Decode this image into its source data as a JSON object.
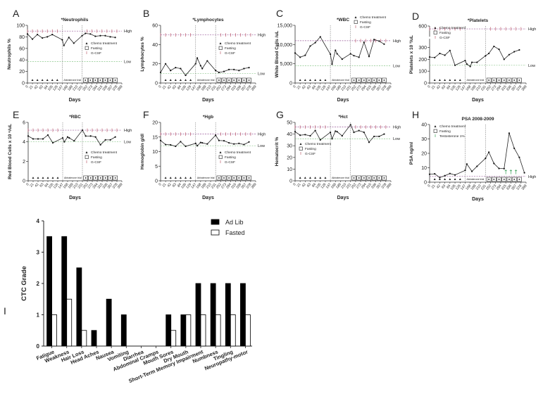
{
  "common": {
    "xlabel": "Days",
    "x_ticks": [
      0,
      21,
      42,
      63,
      84,
      105,
      126,
      147,
      168,
      189,
      210,
      231,
      252,
      273,
      294,
      315,
      336,
      357,
      378,
      399
    ],
    "xlim": [
      0,
      399
    ],
    "vlines": [
      147,
      231
    ],
    "trial_label": "Abiraterone trial",
    "chemo_days": [
      21,
      42,
      63,
      84,
      105,
      126
    ],
    "fasting_days": [
      245,
      266,
      287,
      308,
      329,
      350,
      371
    ],
    "high_label": "High",
    "low_label": "Low",
    "legend": [
      "Chemo treatment",
      "Fasting",
      "G-CSF"
    ],
    "colors": {
      "line": "#222222",
      "high": "#9a5a9a",
      "low": "#8cc88c",
      "gcsf": "#c06070",
      "testosterone": "#3aa05a"
    }
  },
  "chart_data": [
    {
      "panel": "A",
      "type": "line",
      "title": "*Neutrophils",
      "ylabel": "Neutrophils %",
      "ylim": [
        0,
        100
      ],
      "y_ticks": [
        0,
        20,
        40,
        60,
        80,
        100
      ],
      "y_tick_labels": [
        "0",
        "20",
        "40",
        "60",
        "80",
        "100"
      ],
      "high": 90,
      "low": 37,
      "legend_pos": "right-middle",
      "gcsf_days": [
        0,
        21,
        42,
        63,
        84,
        105,
        126,
        252,
        273,
        294,
        315,
        336,
        357,
        378
      ],
      "x": [
        0,
        21,
        42,
        63,
        84,
        105,
        147,
        154,
        175,
        196,
        231,
        245,
        266,
        287,
        308,
        329,
        350,
        371
      ],
      "y": [
        85,
        76,
        84,
        78,
        80,
        84,
        75,
        65,
        79,
        69,
        82,
        86,
        85,
        81,
        82,
        82,
        80,
        79
      ]
    },
    {
      "panel": "B",
      "type": "line",
      "title": "*Lymphocytes",
      "ylabel": "Lymphocytes %",
      "ylim": [
        0,
        60
      ],
      "y_ticks": [
        0,
        20,
        40,
        60
      ],
      "y_tick_labels": [
        "0",
        "20",
        "40",
        "60"
      ],
      "high": 50,
      "low": 10,
      "legend_pos": "right-middle",
      "gcsf_days": [
        0,
        21,
        42,
        63,
        84,
        105,
        126,
        252,
        273,
        294,
        315,
        336,
        357,
        378
      ],
      "x": [
        0,
        21,
        42,
        63,
        84,
        105,
        147,
        154,
        168,
        175,
        196,
        231,
        245,
        266,
        287,
        308,
        329,
        350,
        371
      ],
      "y": [
        11,
        20,
        13,
        16,
        15,
        8,
        20,
        26,
        18,
        15,
        23,
        13,
        11,
        12,
        14,
        14,
        13,
        15,
        16
      ]
    },
    {
      "panel": "C",
      "type": "line",
      "title": "*WBC",
      "ylabel": "White Blood Cells /uL",
      "ylim": [
        0,
        15000
      ],
      "y_ticks": [
        0,
        5000,
        10000,
        15000
      ],
      "y_tick_labels": [
        "0",
        "5,000",
        "10,000",
        "15,000"
      ],
      "high": 11000,
      "low": 4500,
      "legend_pos": "top-right",
      "gcsf_days": [
        252,
        273,
        294,
        315,
        336,
        357,
        378
      ],
      "x": [
        0,
        21,
        42,
        63,
        84,
        105,
        147,
        154,
        168,
        175,
        196,
        231,
        245,
        266,
        287,
        308,
        329,
        350,
        371
      ],
      "y": [
        7800,
        6700,
        7200,
        9600,
        10500,
        12000,
        7500,
        4900,
        8500,
        7600,
        6200,
        7600,
        7100,
        6700,
        10600,
        6900,
        11300,
        10900,
        10100
      ]
    },
    {
      "panel": "D",
      "type": "line",
      "title": "*Platelets",
      "ylabel": "Platelets x 10 ³/uL",
      "ylim": [
        0,
        600
      ],
      "y_break": [
        350,
        560
      ],
      "y_ticks": [
        0,
        100,
        200,
        300,
        600
      ],
      "y_tick_labels": [
        "0",
        "100",
        "200",
        "300",
        "600"
      ],
      "high": 590,
      "low": 150,
      "legend_pos": "top-left",
      "gcsf_days": [
        0,
        21,
        42,
        63,
        84,
        105,
        126,
        252,
        273,
        294,
        315,
        336,
        357,
        378
      ],
      "x": [
        0,
        21,
        42,
        63,
        84,
        105,
        147,
        154,
        168,
        175,
        196,
        231,
        245,
        266,
        287,
        308,
        329,
        350,
        371
      ],
      "y": [
        220,
        215,
        250,
        235,
        275,
        150,
        190,
        160,
        140,
        175,
        175,
        230,
        250,
        310,
        285,
        200,
        240,
        265,
        280
      ]
    },
    {
      "panel": "E",
      "type": "line",
      "title": "*RBC",
      "ylabel": "Red Blood Cells x 10 ⁶/uL",
      "ylim": [
        0,
        6
      ],
      "y_ticks": [
        0,
        2,
        4,
        6
      ],
      "y_tick_labels": [
        "0",
        "2",
        "4",
        "6"
      ],
      "high": 5.2,
      "low": 4,
      "legend_pos": "right-lower",
      "gcsf_days": [
        0,
        21,
        42,
        63,
        84,
        105,
        126,
        252,
        273,
        294,
        315,
        336,
        357,
        378
      ],
      "x": [
        0,
        21,
        42,
        63,
        84,
        105,
        147,
        154,
        168,
        175,
        196,
        231,
        245,
        266,
        287,
        308,
        329,
        350,
        371
      ],
      "y": [
        4.6,
        4.3,
        4.3,
        4.3,
        4.7,
        3.9,
        4.4,
        4.0,
        4.5,
        4.4,
        4.1,
        5.2,
        4.6,
        4.6,
        4.5,
        3.7,
        4.2,
        4.2,
        4.5
      ]
    },
    {
      "panel": "F",
      "type": "line",
      "title": "*Hgb",
      "ylabel": "Hemoglobin g/dl",
      "ylim": [
        0,
        20
      ],
      "y_ticks": [
        0,
        5,
        10,
        15,
        20
      ],
      "y_tick_labels": [
        "0",
        "5",
        "10",
        "15",
        "20"
      ],
      "high": 16,
      "low": 12,
      "legend_pos": "right-lower",
      "gcsf_days": [
        0,
        21,
        42,
        63,
        84,
        105,
        126,
        252,
        273,
        294,
        315,
        336,
        357,
        378
      ],
      "x": [
        0,
        21,
        42,
        63,
        84,
        105,
        147,
        154,
        168,
        175,
        196,
        231,
        245,
        266,
        287,
        308,
        329,
        350,
        371
      ],
      "y": [
        13.8,
        12.4,
        12.3,
        11.8,
        13.4,
        11.8,
        12.8,
        12,
        13.1,
        13,
        12.6,
        15.6,
        13.8,
        13.7,
        13,
        12.6,
        12.8,
        12.4,
        13.3
      ]
    },
    {
      "panel": "G",
      "type": "line",
      "title": "*Hct",
      "ylabel": "Hematocrit %",
      "ylim": [
        0,
        50
      ],
      "y_ticks": [
        0,
        10,
        20,
        30,
        40,
        50
      ],
      "y_tick_labels": [
        "0",
        "10",
        "20",
        "30",
        "40",
        "50"
      ],
      "high": 46,
      "low": 36,
      "legend_pos": "left-middle",
      "gcsf_days": [
        0,
        21,
        42,
        63,
        84,
        105,
        126,
        252,
        273,
        294,
        315,
        336,
        357,
        378
      ],
      "x": [
        0,
        21,
        42,
        63,
        84,
        105,
        147,
        154,
        168,
        175,
        196,
        231,
        245,
        266,
        287,
        308,
        329,
        350,
        371
      ],
      "y": [
        42,
        39,
        39.5,
        38.5,
        43,
        35,
        41.5,
        36,
        42.5,
        42,
        38.5,
        48,
        41.5,
        43,
        41.5,
        33,
        38,
        38,
        40
      ]
    },
    {
      "panel": "H",
      "type": "line",
      "title": "PSA 2008-2009",
      "ylabel": "PSA ng/ml",
      "ylim": [
        0,
        40
      ],
      "y_ticks": [
        0,
        10,
        20,
        30,
        40
      ],
      "y_tick_labels": [
        "0",
        "10",
        "20",
        "30",
        "40"
      ],
      "high": 4,
      "low": null,
      "legend_pos": "top-left",
      "legend": [
        "Chemo treatment",
        "Fasting",
        "Testosterone 1%"
      ],
      "testosterone_days": [
        315,
        336,
        357
      ],
      "x": [
        0,
        21,
        42,
        63,
        84,
        105,
        147,
        154,
        175,
        196,
        231,
        245,
        266,
        287,
        308,
        329,
        350,
        371,
        392
      ],
      "y": [
        5.5,
        5.8,
        3.2,
        4.5,
        6,
        5,
        8.2,
        12.6,
        7.5,
        11,
        16.5,
        20.8,
        13,
        9.5,
        9.4,
        34,
        23.5,
        17.2,
        6.5
      ]
    },
    {
      "panel": "I",
      "type": "bar",
      "title": "",
      "ylabel": "CTC Grade",
      "ylim": [
        0,
        4
      ],
      "y_ticks": [
        0,
        1,
        2,
        3,
        4
      ],
      "legend_pos": "top-right",
      "categories": [
        "Fatigue",
        "Weakness",
        "Hair Loss",
        "Head Aches",
        "Nausea",
        "Vomiting",
        "Diarrhea",
        "Abdominal Cramps",
        "Mouth Sores",
        "Dry Mouth",
        "Short-Term Memory Impairment",
        "Numbness",
        "Tingling",
        "Neuropathy-motor"
      ],
      "series": [
        {
          "name": "Ad Lib",
          "color": "#000000",
          "values": [
            3.5,
            3.5,
            2.5,
            0.5,
            1.5,
            1,
            0,
            0,
            1,
            1,
            2,
            2,
            2,
            2
          ]
        },
        {
          "name": "Fasted",
          "color": "#ffffff",
          "values": [
            1,
            1.5,
            0.5,
            0,
            0,
            0,
            0,
            0,
            0.5,
            1,
            1,
            1,
            1,
            1
          ]
        }
      ]
    }
  ]
}
